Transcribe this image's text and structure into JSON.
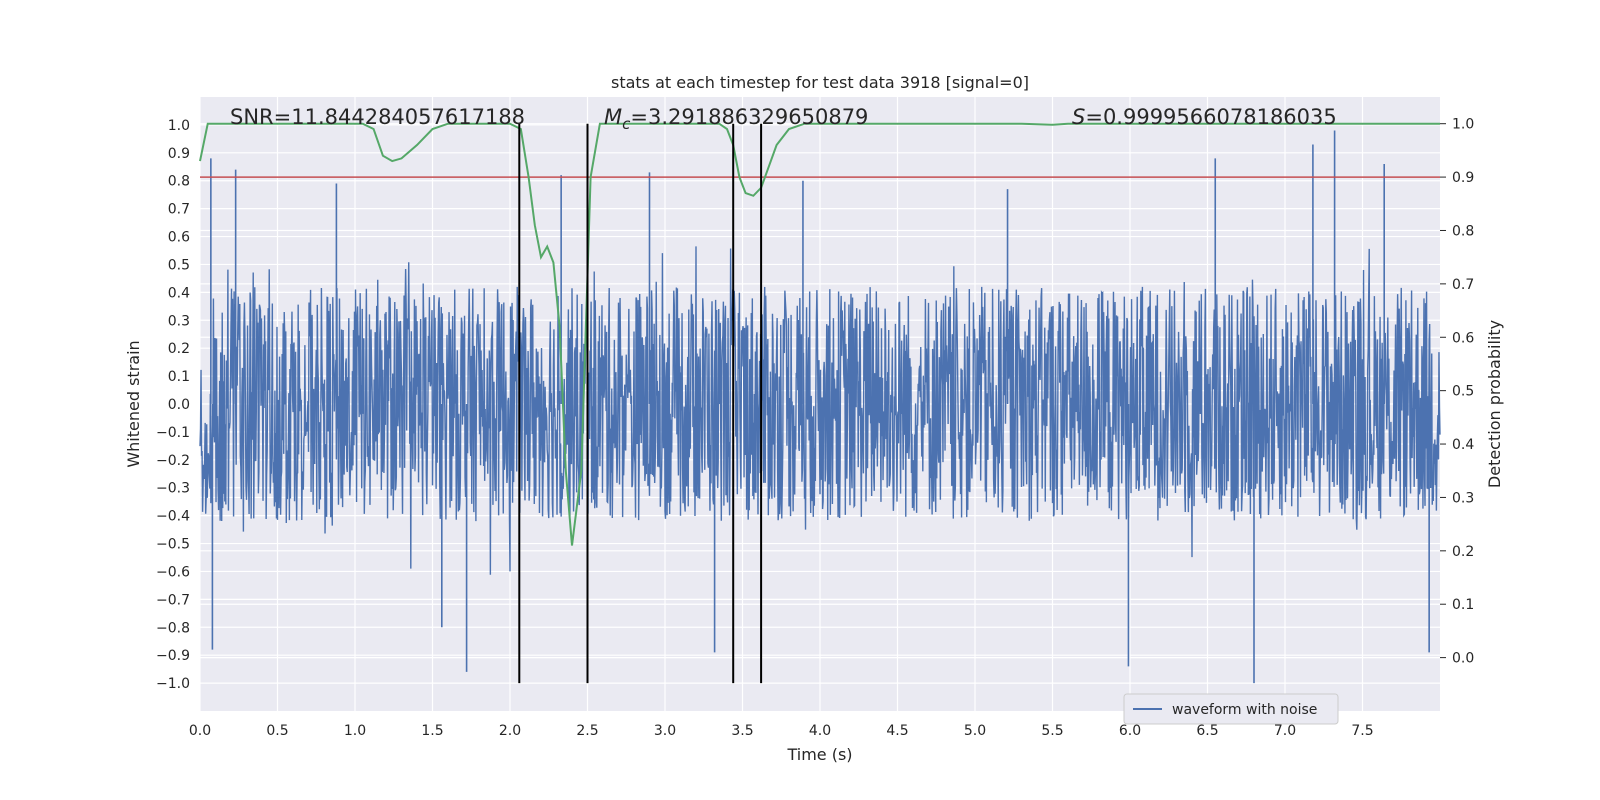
{
  "chart_data": {
    "type": "line",
    "title": "stats at each timestep for test data 3918 [signal=0]",
    "xlabel": "Time (s)",
    "ylabel_left": "Whitened strain",
    "ylabel_right": "Detection probability",
    "xlim": [
      0.0,
      8.0
    ],
    "ylim_left": [
      -1.1,
      1.1
    ],
    "ylim_right": [
      -0.1,
      1.05
    ],
    "xticks": [
      "0.0",
      "0.5",
      "1.0",
      "1.5",
      "2.0",
      "2.5",
      "3.0",
      "3.5",
      "4.0",
      "4.5",
      "5.0",
      "5.5",
      "6.0",
      "6.5",
      "7.0",
      "7.5"
    ],
    "yticks_left": [
      "1.0",
      "0.9",
      "0.8",
      "0.7",
      "0.6",
      "0.5",
      "0.4",
      "0.3",
      "0.2",
      "0.1",
      "0.0",
      "-0.1",
      "-0.2",
      "-0.3",
      "-0.4",
      "-0.5",
      "-0.6",
      "-0.7",
      "-0.8",
      "-0.9",
      "-1.0"
    ],
    "yticks_right": [
      "1.0",
      "0.9",
      "0.8",
      "0.7",
      "0.6",
      "0.5",
      "0.4",
      "0.3",
      "0.2",
      "0.1",
      "0.0"
    ],
    "grid": true,
    "legend": {
      "entries": [
        "waveform with noise"
      ],
      "position": "lower right"
    },
    "annotations": {
      "snr": "SNR=11.844284057617188",
      "mc_prefix": "M",
      "mc_sub": "c",
      "mc_value": "=3.291886329650879",
      "s_prefix": "S",
      "s_value": "=0.9999566078186035"
    },
    "threshold_right": 0.9,
    "vertical_lines_time": [
      2.06,
      2.5,
      3.44,
      3.62
    ],
    "series": [
      {
        "name": "waveform with noise",
        "color": "#4c72b0",
        "axis": "left",
        "description": "whitened noisy strain, dense samples bounded roughly within +/-0.7 with spikes reaching about +/-1.0",
        "envelope_max": 0.6,
        "notable_spikes": [
          {
            "t": 0.07,
            "v": 0.88
          },
          {
            "t": 0.23,
            "v": 0.84
          },
          {
            "t": 0.88,
            "v": 0.79
          },
          {
            "t": 1.72,
            "v": -0.96
          },
          {
            "t": 1.56,
            "v": -0.8
          },
          {
            "t": 2.33,
            "v": 0.82
          },
          {
            "t": 2.9,
            "v": 0.83
          },
          {
            "t": 3.32,
            "v": -0.89
          },
          {
            "t": 3.89,
            "v": 0.8
          },
          {
            "t": 5.21,
            "v": 0.77
          },
          {
            "t": 5.99,
            "v": -0.94
          },
          {
            "t": 6.55,
            "v": 0.88
          },
          {
            "t": 6.8,
            "v": -1.0
          },
          {
            "t": 7.18,
            "v": 0.93
          },
          {
            "t": 7.32,
            "v": 0.98
          },
          {
            "t": 7.64,
            "v": 0.86
          },
          {
            "t": 7.93,
            "v": -0.89
          },
          {
            "t": 0.08,
            "v": -0.88
          }
        ]
      },
      {
        "name": "detection probability",
        "color": "#55a868",
        "axis": "right",
        "x": [
          0.0,
          0.05,
          0.1,
          0.5,
          1.0,
          1.05,
          1.12,
          1.18,
          1.24,
          1.3,
          1.4,
          1.5,
          1.6,
          2.0,
          2.07,
          2.12,
          2.16,
          2.2,
          2.24,
          2.28,
          2.32,
          2.36,
          2.4,
          2.46,
          2.52,
          2.58,
          2.64,
          3.0,
          3.35,
          3.4,
          3.44,
          3.48,
          3.52,
          3.57,
          3.62,
          3.67,
          3.72,
          3.8,
          3.9,
          4.5,
          5.3,
          5.5,
          5.6,
          6.0,
          8.0
        ],
        "values": [
          0.93,
          1.0,
          1.0,
          1.0,
          1.0,
          1.0,
          0.99,
          0.94,
          0.93,
          0.935,
          0.96,
          0.99,
          1.0,
          1.0,
          0.99,
          0.9,
          0.81,
          0.75,
          0.77,
          0.74,
          0.62,
          0.35,
          0.21,
          0.35,
          0.9,
          1.0,
          1.0,
          1.0,
          1.0,
          0.99,
          0.96,
          0.9,
          0.87,
          0.865,
          0.88,
          0.92,
          0.96,
          0.99,
          1.0,
          1.0,
          1.0,
          0.998,
          1.0,
          1.0,
          1.0
        ]
      }
    ],
    "threshold_color": "#c44e52"
  }
}
